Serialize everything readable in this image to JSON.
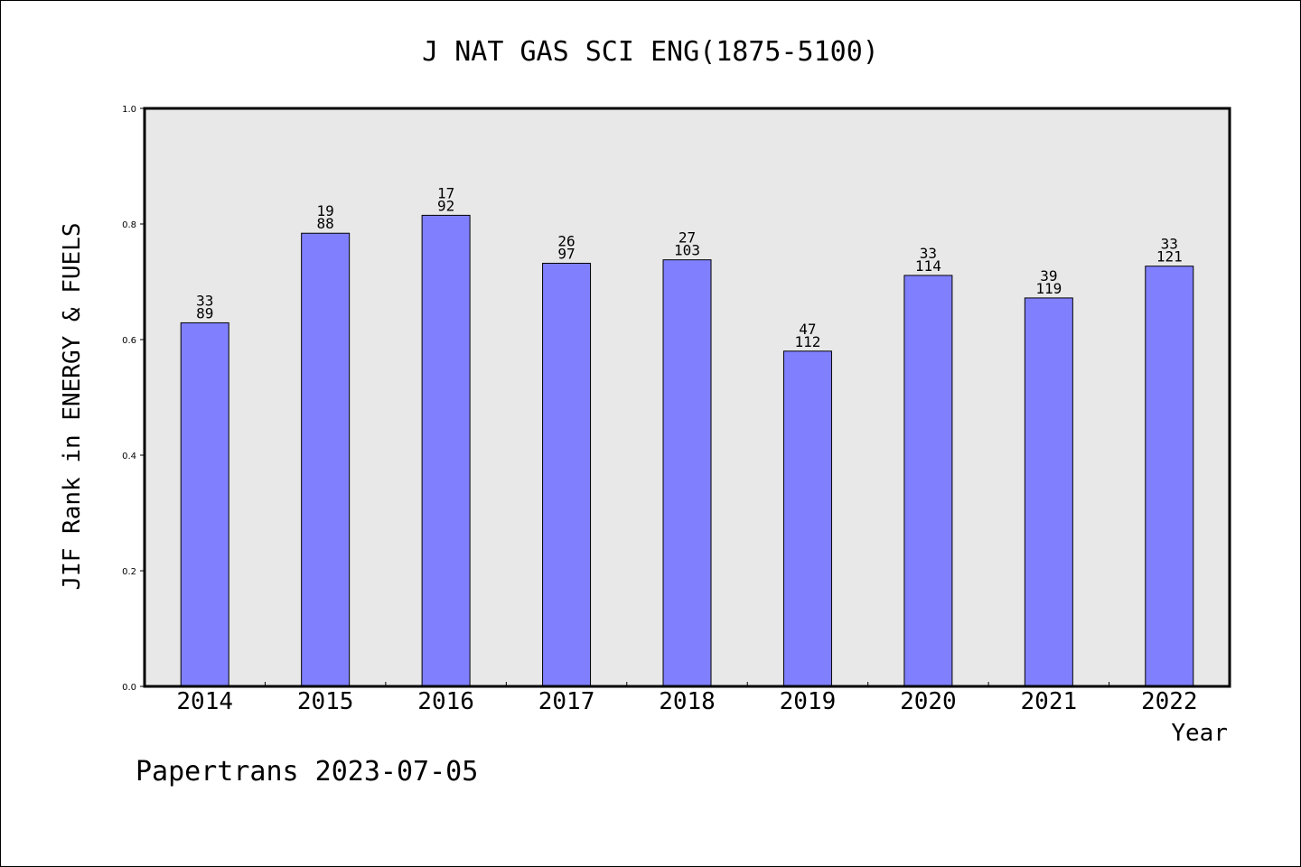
{
  "chart_data": {
    "type": "bar",
    "title": "J NAT GAS SCI ENG(1875-5100)",
    "xlabel": "Year",
    "ylabel": "JIF Rank in ENERGY & FUELS",
    "ylim": [
      0,
      1.0
    ],
    "yticks": [
      "0.0",
      "0.2",
      "0.4",
      "0.6",
      "0.8",
      "1.0"
    ],
    "grid": false,
    "categories": [
      "2014",
      "2015",
      "2016",
      "2017",
      "2018",
      "2019",
      "2020",
      "2021",
      "2022"
    ],
    "values": [
      0.629,
      0.784,
      0.815,
      0.732,
      0.738,
      0.58,
      0.711,
      0.672,
      0.727
    ],
    "labels_top": [
      "33",
      "19",
      "17",
      "26",
      "27",
      "47",
      "33",
      "39",
      "33"
    ],
    "labels_bottom": [
      "89",
      "88",
      "92",
      "97",
      "103",
      "112",
      "114",
      "119",
      "121"
    ],
    "bar_color": "#8080ff",
    "plot_background": "#e8e8e8"
  },
  "footer": "Papertrans 2023-07-05"
}
